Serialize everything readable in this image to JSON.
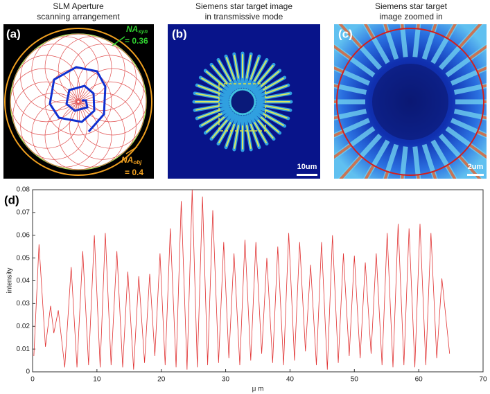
{
  "panels": [
    {
      "label": "(a)",
      "title_lines": [
        "SLM Aperture",
        "scanning arrangement"
      ],
      "annotations": [
        {
          "symbol": "NA",
          "subscript": "syn",
          "text": "= 0.36"
        },
        {
          "symbol": "NA",
          "subscript": "obj",
          "text": "= 0.4"
        }
      ]
    },
    {
      "label": "(b)",
      "title_lines": [
        "Siemens star target image",
        "in transmissive mode"
      ],
      "scale_bar": "10um"
    },
    {
      "label": "(c)",
      "title_lines": [
        "Siemens star target",
        "image zoomed in"
      ],
      "scale_bar": "2um"
    }
  ],
  "chart_data": {
    "type": "line",
    "label": "(d)",
    "x_label": "μ m",
    "y_label": "intensity",
    "color": "#e03030",
    "x": [
      0.2,
      1.0,
      2.0,
      2.8,
      3.3,
      4.0,
      5.0,
      6.0,
      6.9,
      7.8,
      8.7,
      9.6,
      10.5,
      11.3,
      12.2,
      13.1,
      14.0,
      14.8,
      15.7,
      16.5,
      17.4,
      18.2,
      19.0,
      19.8,
      20.6,
      21.4,
      22.3,
      23.1,
      24.0,
      24.8,
      25.6,
      26.4,
      27.2,
      28.0,
      28.9,
      29.7,
      30.5,
      31.3,
      32.2,
      33.0,
      33.9,
      34.7,
      35.6,
      36.4,
      37.3,
      38.1,
      39.0,
      39.8,
      40.7,
      41.5,
      42.4,
      43.2,
      44.1,
      44.9,
      45.8,
      46.6,
      47.5,
      48.3,
      49.2,
      50.0,
      50.9,
      51.7,
      52.6,
      53.4,
      54.3,
      55.1,
      56.0,
      56.8,
      57.7,
      58.5,
      59.4,
      60.2,
      61.1,
      61.9,
      62.8,
      63.6,
      64.8
    ],
    "values": [
      0.007,
      0.056,
      0.011,
      0.029,
      0.017,
      0.027,
      0.002,
      0.046,
      0.002,
      0.053,
      0.003,
      0.06,
      0.002,
      0.061,
      0.003,
      0.053,
      0.002,
      0.044,
      0.001,
      0.042,
      0.004,
      0.043,
      0.007,
      0.052,
      0.003,
      0.063,
      0.002,
      0.075,
      0.001,
      0.08,
      0.002,
      0.077,
      0.003,
      0.071,
      0.004,
      0.057,
      0.006,
      0.052,
      0.003,
      0.058,
      0.005,
      0.057,
      0.008,
      0.05,
      0.004,
      0.055,
      0.003,
      0.061,
      0.005,
      0.057,
      0.009,
      0.047,
      0.003,
      0.057,
      0.001,
      0.06,
      0.004,
      0.052,
      0.007,
      0.051,
      0.006,
      0.048,
      0.008,
      0.052,
      0.003,
      0.061,
      0.002,
      0.065,
      0.003,
      0.063,
      0.002,
      0.065,
      0.003,
      0.061,
      0.006,
      0.041,
      0.008
    ],
    "xlim": [
      0,
      70
    ],
    "xticks": [
      0,
      10,
      20,
      30,
      40,
      50,
      60,
      70
    ],
    "ylim": [
      0,
      0.08
    ],
    "yticks": [
      0,
      0.01,
      0.02,
      0.03,
      0.04,
      0.05,
      0.06,
      0.07,
      0.08
    ]
  }
}
